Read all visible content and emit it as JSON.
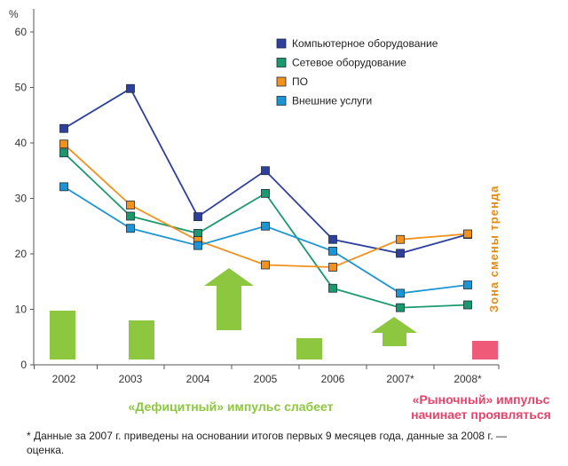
{
  "chart_data": {
    "type": "line",
    "y_unit_label": "%",
    "ylim": [
      0,
      60
    ],
    "y_ticks": [
      "0",
      "10",
      "20",
      "30",
      "40",
      "50",
      "60"
    ],
    "categories": [
      "2002",
      "2003",
      "2004",
      "2005",
      "2006",
      "2007*",
      "2008*"
    ],
    "legend_placement": "top-right",
    "series": [
      {
        "name": "Компьютерное оборудование",
        "color": "#2e3f9e",
        "values": [
          42.6,
          49.8,
          26.7,
          35.0,
          22.6,
          20.1,
          23.5
        ]
      },
      {
        "name": "Сетевое оборудование",
        "color": "#1a9a6c",
        "values": [
          38.2,
          26.8,
          23.7,
          30.9,
          13.8,
          10.3,
          10.8
        ]
      },
      {
        "name": "ПО",
        "color": "#f2921d",
        "values": [
          39.8,
          28.8,
          22.4,
          18.0,
          17.6,
          22.6,
          23.6
        ]
      },
      {
        "name": "Внешние услуги",
        "color": "#1b95d3",
        "values": [
          32.1,
          24.6,
          21.5,
          25.0,
          20.5,
          12.9,
          14.4
        ]
      }
    ],
    "zone_label": "Зона смены тренда",
    "annotations": {
      "deficit_impulse": "«Дефицитный» импульс слабеет",
      "market_impulse": "«Рыночный» импульс начинает проявляться"
    },
    "footnote": "* Данные за 2007 г. приведены на основании итогов первых 9 месяцев года, данные за 2008 г. — оценка."
  },
  "colors": {
    "deficit_green": "#8dc63f",
    "market_pink": "#ef5a78",
    "zone_orange": "#e08a18"
  }
}
